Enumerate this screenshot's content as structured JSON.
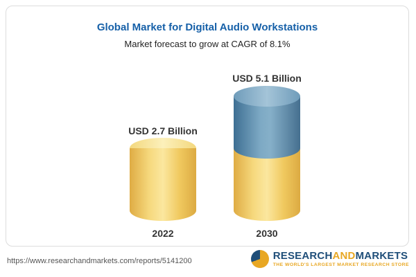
{
  "header": {
    "title": "Global Market for Digital Audio Workstations",
    "subtitle": "Market forecast to grow at CAGR of 8.1%"
  },
  "chart_data": {
    "type": "bar",
    "title": "Global Market for Digital Audio Workstations",
    "subtitle": "Market forecast to grow at CAGR of 8.1%",
    "categories": [
      "2022",
      "2030"
    ],
    "values": [
      2.7,
      5.1
    ],
    "unit": "USD Billion",
    "ylim": [
      0,
      5.5
    ],
    "grid": false,
    "legend_position": "none",
    "bars": [
      {
        "category": "2022",
        "value": 2.7,
        "label": "USD 2.7 Billion",
        "segments": [
          {
            "name": "base",
            "color": "#F2CB63",
            "value": 2.7
          }
        ]
      },
      {
        "category": "2030",
        "value": 5.1,
        "label": "USD 5.1 Billion",
        "segments": [
          {
            "name": "base",
            "color": "#F2CB63",
            "value": 2.7
          },
          {
            "name": "growth",
            "color": "#4E80A6",
            "value": 2.4
          }
        ]
      }
    ],
    "colors": {
      "title": "#1660a8",
      "bar_base": "#F2CB63",
      "bar_growth": "#4E80A6",
      "text": "#333333"
    }
  },
  "footer": {
    "url": "https://www.researchandmarkets.com/reports/5141200",
    "logo": {
      "part1": "RESEARCH",
      "part2": "AND",
      "part3": "MARKETS",
      "tagline": "THE WORLD'S LARGEST MARKET RESEARCH STORE"
    }
  }
}
